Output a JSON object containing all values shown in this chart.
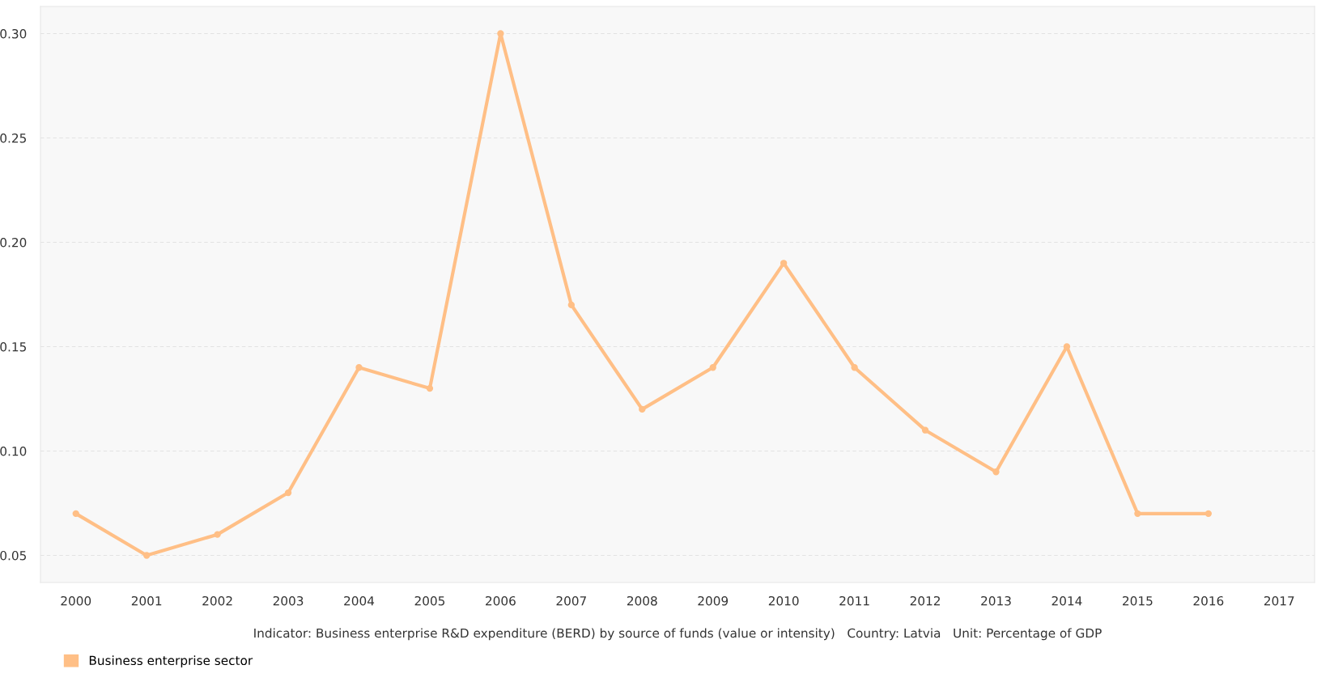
{
  "chart_data": {
    "type": "line",
    "categories": [
      "2000",
      "2001",
      "2002",
      "2003",
      "2004",
      "2005",
      "2006",
      "2007",
      "2008",
      "2009",
      "2010",
      "2011",
      "2012",
      "2013",
      "2014",
      "2015",
      "2016",
      "2017"
    ],
    "series": [
      {
        "name": "Business enterprise sector",
        "color": "#ffbf86",
        "values": [
          0.07,
          0.05,
          0.06,
          0.08,
          0.14,
          0.13,
          0.3,
          0.17,
          0.12,
          0.14,
          0.19,
          0.14,
          0.11,
          0.09,
          0.15,
          0.07,
          0.07,
          null
        ]
      }
    ],
    "xlabel": "Indicator: Business enterprise R&D expenditure (BERD) by source of funds (value or intensity)   Country: Latvia   Unit: Percentage of GDP",
    "ylim": [
      0.037,
      0.313
    ],
    "yticks": [
      {
        "value": 0.05,
        "label": "0.05"
      },
      {
        "value": 0.1,
        "label": "0.10"
      },
      {
        "value": 0.15,
        "label": "0.15"
      },
      {
        "value": 0.2,
        "label": "0.20"
      },
      {
        "value": 0.25,
        "label": "0.25"
      },
      {
        "value": 0.3,
        "label": "0.30"
      }
    ],
    "grid": "y",
    "legend": "bottom left",
    "marker": "circle",
    "line_style": "solid"
  }
}
